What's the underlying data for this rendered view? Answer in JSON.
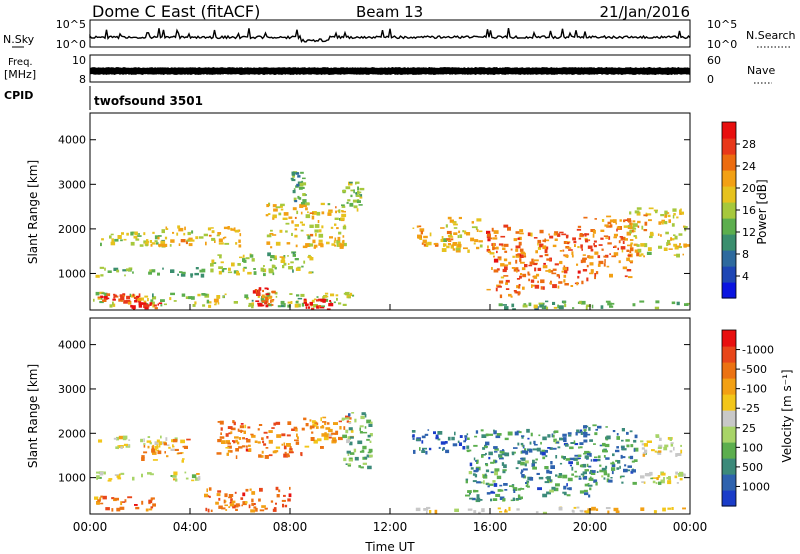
{
  "header": {
    "station": "Dome C East (fitACF)",
    "beam": "Beam 13",
    "date": "21/Jan/2016"
  },
  "strips": {
    "nsky": {
      "label": "N.Sky",
      "ticks_left": [
        "10^5",
        "10^0"
      ],
      "right_label": "N.Search",
      "ticks_right": [
        "10^5",
        "10^0"
      ]
    },
    "freq": {
      "label": "Freq.",
      "unit": "[MHz]",
      "ticks_left": [
        "10",
        "8"
      ],
      "right_label": "Nave",
      "ticks_right": [
        "60",
        "0"
      ]
    },
    "cpid": {
      "label": "CPID",
      "text": "twofsound 3501"
    }
  },
  "chart_data": [
    {
      "type": "heatmap",
      "title": "",
      "xlabel": "",
      "ylabel": "Slant Range [km]",
      "x_unit": "hours UT",
      "xlim": [
        0,
        24
      ],
      "ylim": [
        180,
        4600
      ],
      "yticks": [
        {
          "value": 1000,
          "label": "1000"
        },
        {
          "value": 2000,
          "label": "2000"
        },
        {
          "value": 3000,
          "label": "3000"
        },
        {
          "value": 4000,
          "label": "4000"
        }
      ],
      "colorbar": {
        "label": "Power [dB]",
        "ticks": [
          "4",
          "8",
          "12",
          "16",
          "20",
          "24",
          "28"
        ],
        "colors": [
          "#0a14e0",
          "#1e46b4",
          "#2e6a9e",
          "#3a8e6e",
          "#5cae4e",
          "#a6c83c",
          "#e6c21e",
          "#f2a014",
          "#ec6c10",
          "#e8381a",
          "#e80f0f"
        ]
      },
      "echo_regions": [
        {
          "t": [
            0.1,
            3.2
          ],
          "r": [
            1650,
            1950
          ],
          "level": 5
        },
        {
          "t": [
            0.2,
            4.5
          ],
          "r": [
            950,
            1150
          ],
          "level": 4
        },
        {
          "t": [
            0.1,
            10.5
          ],
          "r": [
            280,
            600
          ],
          "level": 5
        },
        {
          "t": [
            0.3,
            2.0
          ],
          "r": [
            400,
            560
          ],
          "level": 9
        },
        {
          "t": [
            1.6,
            2.8
          ],
          "r": [
            180,
            360
          ],
          "level": 10
        },
        {
          "t": [
            2.2,
            6.0
          ],
          "r": [
            1650,
            2100
          ],
          "level": 6
        },
        {
          "t": [
            6.5,
            7.3
          ],
          "r": [
            280,
            700
          ],
          "level": 9
        },
        {
          "t": [
            8.5,
            9.6
          ],
          "r": [
            180,
            450
          ],
          "level": 10
        },
        {
          "t": [
            4.8,
            8.8
          ],
          "r": [
            1000,
            1500
          ],
          "level": 5
        },
        {
          "t": [
            7.0,
            10.2
          ],
          "r": [
            1600,
            2600
          ],
          "level": 6
        },
        {
          "t": [
            8.0,
            8.6
          ],
          "r": [
            2600,
            3300
          ],
          "level": 4
        },
        {
          "t": [
            10.0,
            10.8
          ],
          "r": [
            2400,
            3100
          ],
          "level": 5
        },
        {
          "t": [
            12.8,
            14.5
          ],
          "r": [
            1600,
            2100
          ],
          "level": 7
        },
        {
          "t": [
            14.0,
            15.6
          ],
          "r": [
            1500,
            2300
          ],
          "level": 6
        },
        {
          "t": [
            15.8,
            17.2
          ],
          "r": [
            500,
            2100
          ],
          "level": 8
        },
        {
          "t": [
            17.0,
            19.8
          ],
          "r": [
            700,
            2000
          ],
          "level": 8
        },
        {
          "t": [
            19.5,
            21.6
          ],
          "r": [
            900,
            2300
          ],
          "level": 8
        },
        {
          "t": [
            21.5,
            23.9
          ],
          "r": [
            1400,
            2500
          ],
          "level": 6
        },
        {
          "t": [
            16.0,
            24.0
          ],
          "r": [
            180,
            400
          ],
          "level": 4
        }
      ]
    },
    {
      "type": "heatmap",
      "title": "",
      "xlabel": "Time UT",
      "ylabel": "Slant Range [km]",
      "x_unit": "hours UT",
      "xlim": [
        0,
        24
      ],
      "ylim": [
        180,
        4600
      ],
      "xticks": [
        {
          "value": 0,
          "label": "00:00"
        },
        {
          "value": 4,
          "label": "04:00"
        },
        {
          "value": 8,
          "label": "08:00"
        },
        {
          "value": 12,
          "label": "12:00"
        },
        {
          "value": 16,
          "label": "16:00"
        },
        {
          "value": 20,
          "label": "20:00"
        },
        {
          "value": 24,
          "label": "00:00"
        }
      ],
      "yticks": [
        {
          "value": 1000,
          "label": "1000"
        },
        {
          "value": 2000,
          "label": "2000"
        },
        {
          "value": 3000,
          "label": "3000"
        },
        {
          "value": 4000,
          "label": "4000"
        }
      ],
      "colorbar": {
        "label": "Velocity [m s⁻¹]",
        "ticks": [
          "1000",
          "500",
          "100",
          "25",
          "-25",
          "-100",
          "-500",
          "-1000"
        ],
        "colors": [
          "#1a3cc8",
          "#2e62ae",
          "#3c8a7a",
          "#5cae4e",
          "#a8d468",
          "#c8c8c8",
          "#f2c61a",
          "#f2a014",
          "#ec7212",
          "#e8461a",
          "#e80f0f"
        ]
      },
      "echo_regions": [
        {
          "t": [
            0.2,
            3.5
          ],
          "r": [
            1700,
            1950
          ],
          "level": 5
        },
        {
          "t": [
            0.2,
            4.5
          ],
          "r": [
            950,
            1150
          ],
          "level": 5
        },
        {
          "t": [
            0.1,
            2.5
          ],
          "r": [
            300,
            600
          ],
          "level": 8
        },
        {
          "t": [
            4.5,
            8.0
          ],
          "r": [
            250,
            800
          ],
          "level": 8
        },
        {
          "t": [
            2.0,
            4.0
          ],
          "r": [
            1400,
            1900
          ],
          "level": 7
        },
        {
          "t": [
            5.0,
            8.5
          ],
          "r": [
            1500,
            2300
          ],
          "level": 8
        },
        {
          "t": [
            8.5,
            10.5
          ],
          "r": [
            1700,
            2400
          ],
          "level": 7
        },
        {
          "t": [
            10.0,
            11.2
          ],
          "r": [
            1200,
            2500
          ],
          "level": 3
        },
        {
          "t": [
            12.8,
            15.0
          ],
          "r": [
            1600,
            2100
          ],
          "level": 1
        },
        {
          "t": [
            15.0,
            17.5
          ],
          "r": [
            500,
            2100
          ],
          "level": 2
        },
        {
          "t": [
            17.2,
            20.0
          ],
          "r": [
            600,
            2100
          ],
          "level": 2
        },
        {
          "t": [
            19.5,
            21.8
          ],
          "r": [
            900,
            2200
          ],
          "level": 2
        },
        {
          "t": [
            22.0,
            23.8
          ],
          "r": [
            1500,
            2000
          ],
          "level": 5
        },
        {
          "t": [
            22.0,
            23.8
          ],
          "r": [
            900,
            1150
          ],
          "level": 5
        },
        {
          "t": [
            13.0,
            24.0
          ],
          "r": [
            180,
            350
          ],
          "level": 6
        }
      ]
    }
  ]
}
